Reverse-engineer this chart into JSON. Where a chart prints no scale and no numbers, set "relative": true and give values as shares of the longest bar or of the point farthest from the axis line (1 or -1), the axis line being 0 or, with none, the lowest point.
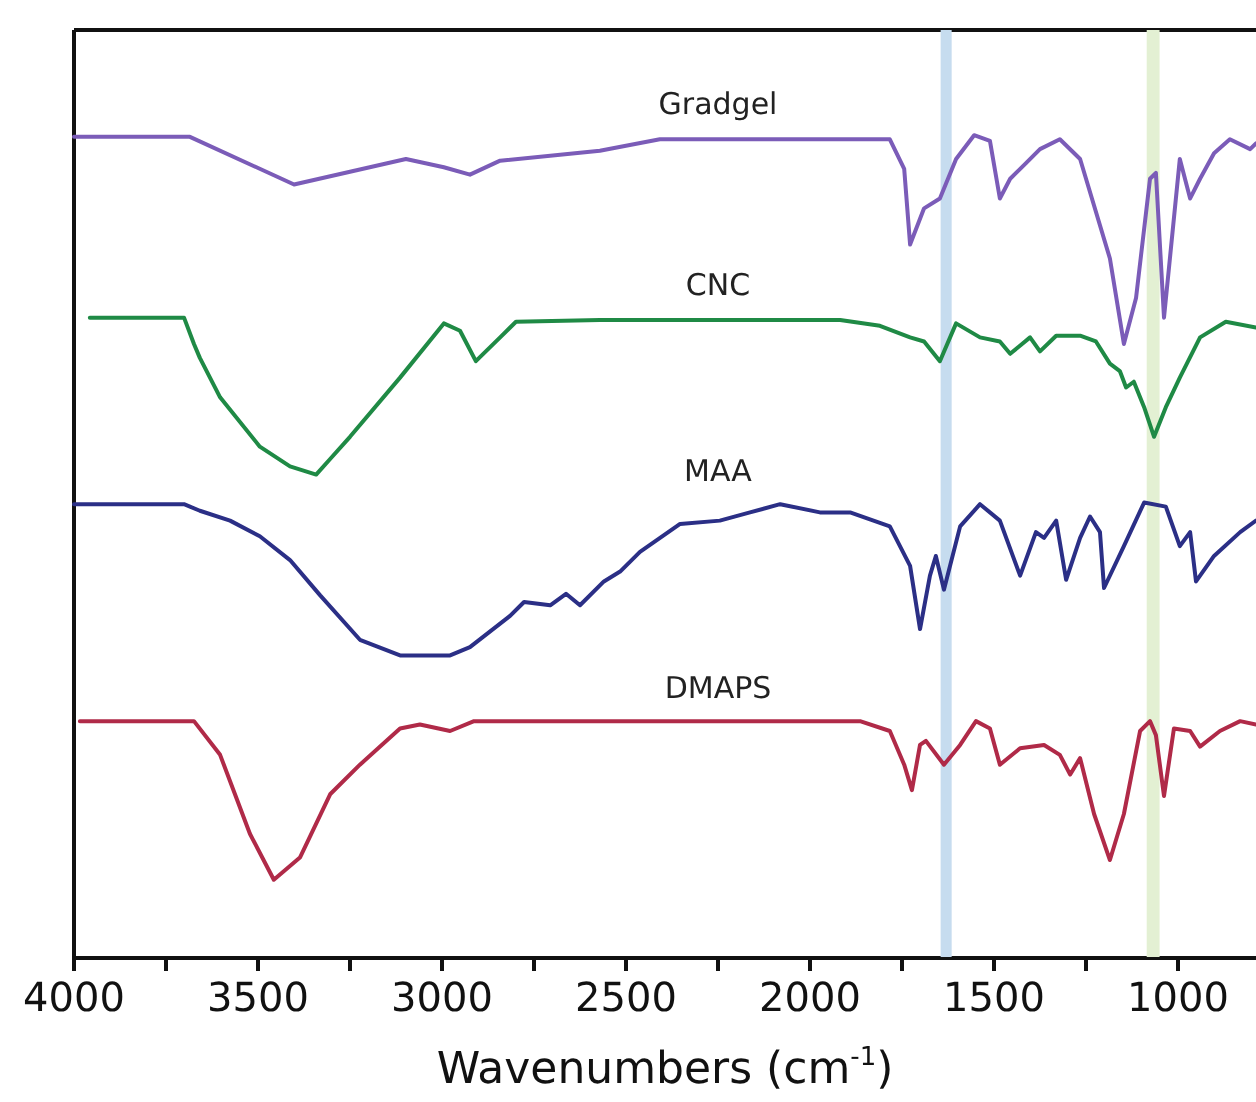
{
  "chart_data": {
    "type": "line",
    "relative": true,
    "xlabel": "Wavenumbers (cm$^{-1}$)",
    "xlim": [
      4000,
      788
    ],
    "xticks": [
      4000,
      {
        "value": 3750,
        "label": null
      },
      3500,
      {
        "value": 3250,
        "label": null
      },
      3000,
      {
        "value": 2750,
        "label": null
      },
      2500,
      {
        "value": 2250,
        "label": null
      },
      2000,
      {
        "value": 1750,
        "label": null
      },
      1500,
      {
        "value": 1250,
        "label": null
      },
      1000
    ],
    "legend": false,
    "marker": "none",
    "line_style": "solid",
    "grid": false,
    "bands": [
      {
        "axis": "x",
        "from": 1645,
        "to": 1615,
        "color": "#c6dcef"
      },
      {
        "axis": "x",
        "from": 1085,
        "to": 1050,
        "color": "#e3f0d3"
      }
    ],
    "series": [
      {
        "name": "Gradgel",
        "color": "#7b5cb8",
        "x": [
          4000,
          3685,
          3402,
          3098,
          2995,
          2924,
          2842,
          2571,
          2408,
          1783,
          1744,
          1728,
          1690,
          1647,
          1603,
          1554,
          1511,
          1484,
          1456,
          1413,
          1375,
          1321,
          1266,
          1185,
          1147,
          1114,
          1076,
          1060,
          1038,
          995,
          967,
          940,
          902,
          859,
          804,
          788
        ],
        "values": [
          0.998,
          0.998,
          0.94,
          0.971,
          0.961,
          0.952,
          0.969,
          0.981,
          0.995,
          0.995,
          0.959,
          0.867,
          0.911,
          0.923,
          0.971,
          1.0,
          0.993,
          0.923,
          0.947,
          0.966,
          0.983,
          0.995,
          0.971,
          0.85,
          0.746,
          0.802,
          0.947,
          0.954,
          0.778,
          0.971,
          0.923,
          0.947,
          0.978,
          0.995,
          0.983,
          0.99
        ]
      },
      {
        "name": "CNC",
        "color": "#1f8a45",
        "x": [
          3957,
          3701,
          3674,
          3658,
          3603,
          3495,
          3413,
          3342,
          3304,
          3250,
          3114,
          2995,
          2951,
          2908,
          2842,
          2799,
          2571,
          1918,
          1810,
          1728,
          1690,
          1647,
          1603,
          1538,
          1484,
          1456,
          1402,
          1375,
          1331,
          1266,
          1223,
          1185,
          1158,
          1141,
          1120,
          1092,
          1065,
          1033,
          995,
          940,
          870,
          788
        ],
        "values": [
          0.778,
          0.778,
          0.746,
          0.729,
          0.681,
          0.621,
          0.597,
          0.587,
          0.606,
          0.633,
          0.705,
          0.771,
          0.762,
          0.725,
          0.754,
          0.773,
          0.775,
          0.775,
          0.768,
          0.754,
          0.749,
          0.725,
          0.771,
          0.754,
          0.749,
          0.734,
          0.754,
          0.737,
          0.756,
          0.756,
          0.749,
          0.722,
          0.713,
          0.693,
          0.7,
          0.669,
          0.633,
          0.669,
          0.705,
          0.754,
          0.773,
          0.766
        ]
      },
      {
        "name": "MAA",
        "color": "#2b2f86",
        "x": [
          4000,
          3701,
          3658,
          3576,
          3495,
          3413,
          3331,
          3223,
          3114,
          2978,
          2924,
          2815,
          2777,
          2706,
          2663,
          2625,
          2560,
          2516,
          2462,
          2353,
          2245,
          2163,
          2081,
          1973,
          1891,
          1783,
          1728,
          1701,
          1674,
          1658,
          1636,
          1592,
          1538,
          1484,
          1429,
          1386,
          1364,
          1331,
          1304,
          1266,
          1239,
          1212,
          1201,
          1147,
          1092,
          1033,
          995,
          967,
          951,
          902,
          831,
          788
        ],
        "values": [
          0.551,
          0.551,
          0.543,
          0.531,
          0.512,
          0.483,
          0.44,
          0.386,
          0.367,
          0.367,
          0.377,
          0.415,
          0.432,
          0.428,
          0.442,
          0.428,
          0.457,
          0.469,
          0.493,
          0.527,
          0.531,
          0.541,
          0.551,
          0.541,
          0.541,
          0.524,
          0.476,
          0.399,
          0.464,
          0.488,
          0.447,
          0.524,
          0.551,
          0.531,
          0.464,
          0.517,
          0.51,
          0.531,
          0.459,
          0.51,
          0.536,
          0.517,
          0.449,
          0.5,
          0.553,
          0.548,
          0.5,
          0.517,
          0.457,
          0.488,
          0.517,
          0.531
        ]
      },
      {
        "name": "DMAPS",
        "color": "#b02a48",
        "x": [
          3984,
          3674,
          3603,
          3522,
          3457,
          3386,
          3304,
          3223,
          3114,
          3060,
          2978,
          2913,
          2408,
          1864,
          1783,
          1744,
          1723,
          1701,
          1685,
          1636,
          1592,
          1549,
          1511,
          1484,
          1429,
          1364,
          1321,
          1293,
          1266,
          1228,
          1185,
          1147,
          1103,
          1076,
          1060,
          1038,
          1011,
          967,
          940,
          886,
          831,
          788
        ],
        "values": [
          0.287,
          0.287,
          0.246,
          0.15,
          0.094,
          0.121,
          0.198,
          0.234,
          0.278,
          0.283,
          0.275,
          0.287,
          0.287,
          0.287,
          0.275,
          0.234,
          0.203,
          0.258,
          0.263,
          0.234,
          0.258,
          0.287,
          0.278,
          0.234,
          0.254,
          0.258,
          0.246,
          0.222,
          0.242,
          0.174,
          0.118,
          0.174,
          0.275,
          0.287,
          0.27,
          0.196,
          0.278,
          0.275,
          0.256,
          0.275,
          0.287,
          0.283
        ]
      }
    ]
  }
}
